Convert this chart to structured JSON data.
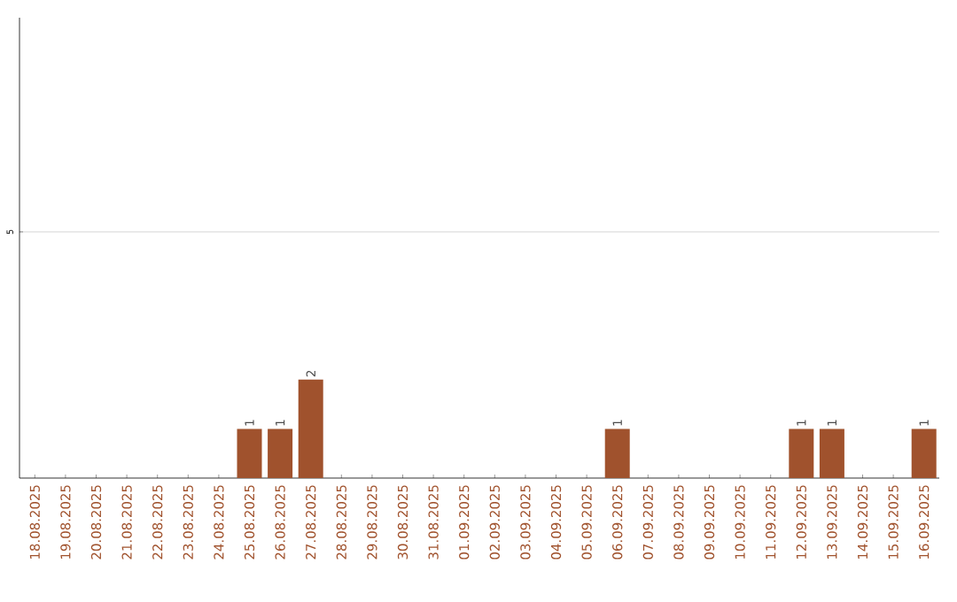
{
  "chart_data": {
    "type": "bar",
    "categories": [
      "18.08.2025",
      "19.08.2025",
      "20.08.2025",
      "21.08.2025",
      "22.08.2025",
      "23.08.2025",
      "24.08.2025",
      "25.08.2025",
      "26.08.2025",
      "27.08.2025",
      "28.08.2025",
      "29.08.2025",
      "30.08.2025",
      "31.08.2025",
      "01.09.2025",
      "02.09.2025",
      "03.09.2025",
      "04.09.2025",
      "05.09.2025",
      "06.09.2025",
      "07.09.2025",
      "08.09.2025",
      "09.09.2025",
      "10.09.2025",
      "11.09.2025",
      "12.09.2025",
      "13.09.2025",
      "14.09.2025",
      "15.09.2025",
      "16.09.2025"
    ],
    "values": [
      0,
      0,
      0,
      0,
      0,
      0,
      0,
      1,
      1,
      2,
      0,
      0,
      0,
      0,
      0,
      0,
      0,
      0,
      0,
      1,
      0,
      0,
      0,
      0,
      0,
      1,
      1,
      0,
      0,
      1
    ],
    "value_labels": [
      null,
      null,
      null,
      null,
      null,
      null,
      null,
      "1",
      "1",
      "2",
      null,
      null,
      null,
      null,
      null,
      null,
      null,
      null,
      null,
      "1",
      null,
      null,
      null,
      null,
      null,
      "1",
      "1",
      null,
      null,
      "1"
    ],
    "color": "#a0522d",
    "ylim": [
      0,
      9.35
    ],
    "yticks": [
      5
    ],
    "grid": "y"
  }
}
